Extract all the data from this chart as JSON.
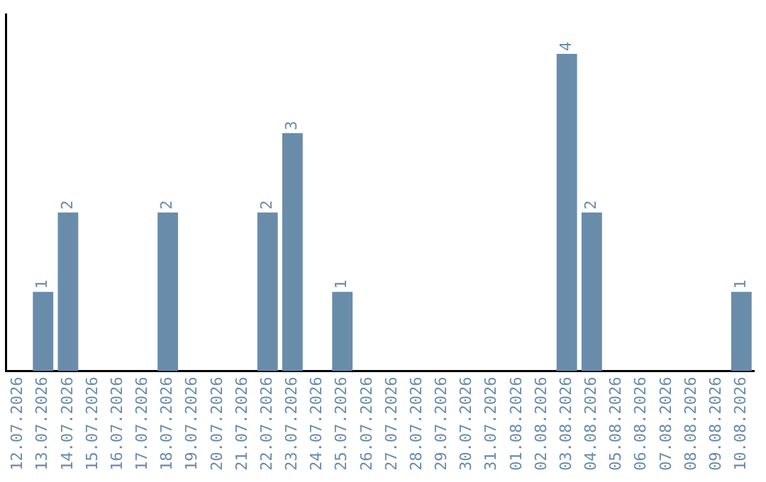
{
  "chart_data": {
    "type": "bar",
    "categories": [
      "12.07.2026",
      "13.07.2026",
      "14.07.2026",
      "15.07.2026",
      "16.07.2026",
      "17.07.2026",
      "18.07.2026",
      "19.07.2026",
      "20.07.2026",
      "21.07.2026",
      "22.07.2026",
      "23.07.2026",
      "24.07.2026",
      "25.07.2026",
      "26.07.2026",
      "27.07.2026",
      "28.07.2026",
      "29.07.2026",
      "30.07.2026",
      "31.07.2026",
      "01.08.2026",
      "02.08.2026",
      "03.08.2026",
      "04.08.2026",
      "05.08.2026",
      "06.08.2026",
      "07.08.2026",
      "08.08.2026",
      "09.08.2026",
      "10.08.2026"
    ],
    "values": [
      0,
      1,
      2,
      0,
      0,
      0,
      2,
      0,
      0,
      0,
      2,
      3,
      0,
      1,
      0,
      0,
      0,
      0,
      0,
      0,
      0,
      0,
      4,
      2,
      0,
      0,
      0,
      0,
      0,
      1
    ],
    "value_labels": [
      null,
      "1",
      "2",
      null,
      null,
      null,
      "2",
      null,
      null,
      null,
      "2",
      "3",
      null,
      "1",
      null,
      null,
      null,
      null,
      null,
      null,
      null,
      null,
      "4",
      "2",
      null,
      null,
      null,
      null,
      null,
      "1"
    ],
    "color": "#6a8cab",
    "grid": false,
    "legend": false,
    "tick_labels": "x"
  }
}
